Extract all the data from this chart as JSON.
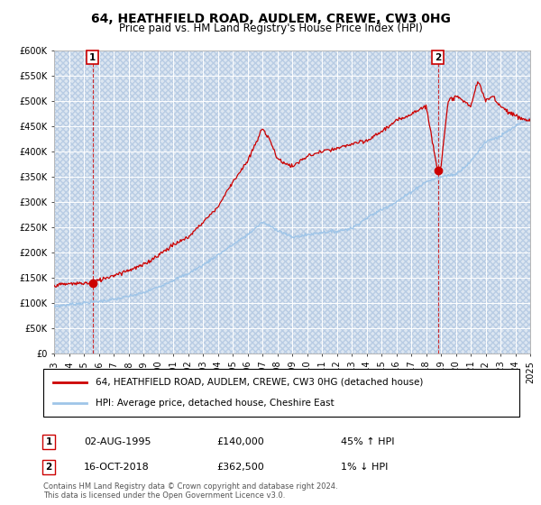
{
  "title": "64, HEATHFIELD ROAD, AUDLEM, CREWE, CW3 0HG",
  "subtitle": "Price paid vs. HM Land Registry's House Price Index (HPI)",
  "ylim": [
    0,
    600000
  ],
  "yticks": [
    0,
    50000,
    100000,
    150000,
    200000,
    250000,
    300000,
    350000,
    400000,
    450000,
    500000,
    550000,
    600000
  ],
  "ytick_labels": [
    "£0",
    "£50K",
    "£100K",
    "£150K",
    "£200K",
    "£250K",
    "£300K",
    "£350K",
    "£400K",
    "£450K",
    "£500K",
    "£550K",
    "£600K"
  ],
  "x_start_year": 1993,
  "x_end_year": 2025,
  "xticks": [
    1993,
    1994,
    1995,
    1996,
    1997,
    1998,
    1999,
    2000,
    2001,
    2002,
    2003,
    2004,
    2005,
    2006,
    2007,
    2008,
    2009,
    2010,
    2011,
    2012,
    2013,
    2014,
    2015,
    2016,
    2017,
    2018,
    2019,
    2020,
    2021,
    2022,
    2023,
    2024,
    2025
  ],
  "background_color": "#dce6f1",
  "grid_color": "#ffffff",
  "sale1_x": 1995.58,
  "sale1_y": 140000,
  "sale2_x": 2018.79,
  "sale2_y": 362500,
  "sale_color": "#cc0000",
  "sale_marker_size": 6,
  "hpi_color": "#9fc5e8",
  "red_line_color": "#cc0000",
  "legend_label_red": "64, HEATHFIELD ROAD, AUDLEM, CREWE, CW3 0HG (detached house)",
  "legend_label_blue": "HPI: Average price, detached house, Cheshire East",
  "footer": "Contains HM Land Registry data © Crown copyright and database right 2024.\nThis data is licensed under the Open Government Licence v3.0.",
  "title_fontsize": 10,
  "subtitle_fontsize": 8.5,
  "tick_fontsize": 7,
  "legend_fontsize": 7.5,
  "footer_fontsize": 6,
  "hpi_key_years": [
    1993,
    1994,
    1995,
    1996,
    1997,
    1998,
    1999,
    2000,
    2001,
    2002,
    2003,
    2004,
    2005,
    2006,
    2007,
    2008,
    2009,
    2010,
    2011,
    2012,
    2013,
    2014,
    2015,
    2016,
    2017,
    2018,
    2019,
    2020,
    2021,
    2022,
    2023,
    2024,
    2025
  ],
  "hpi_key_vals": [
    93000,
    97000,
    100000,
    103000,
    107000,
    113000,
    120000,
    132000,
    145000,
    158000,
    175000,
    195000,
    215000,
    235000,
    260000,
    245000,
    230000,
    235000,
    240000,
    242000,
    248000,
    268000,
    285000,
    300000,
    320000,
    340000,
    350000,
    355000,
    380000,
    420000,
    430000,
    450000,
    465000
  ],
  "red_key_years": [
    1993,
    1994,
    1995.58,
    1996,
    1997,
    1998,
    1999,
    2000,
    2001,
    2002,
    2003,
    2004,
    2005,
    2006,
    2007,
    2007.5,
    2008,
    2009,
    2010,
    2011,
    2012,
    2013,
    2014,
    2015,
    2016,
    2017,
    2018,
    2018.79,
    2019,
    2019.5,
    2020,
    2021,
    2021.5,
    2022,
    2022.5,
    2023,
    2024,
    2025
  ],
  "red_key_vals": [
    135000,
    138000,
    140000,
    145000,
    155000,
    165000,
    175000,
    195000,
    215000,
    230000,
    260000,
    290000,
    340000,
    380000,
    445000,
    425000,
    385000,
    370000,
    390000,
    400000,
    405000,
    415000,
    420000,
    440000,
    460000,
    475000,
    490000,
    362500,
    370000,
    500000,
    510000,
    490000,
    540000,
    500000,
    510000,
    490000,
    470000,
    460000
  ]
}
